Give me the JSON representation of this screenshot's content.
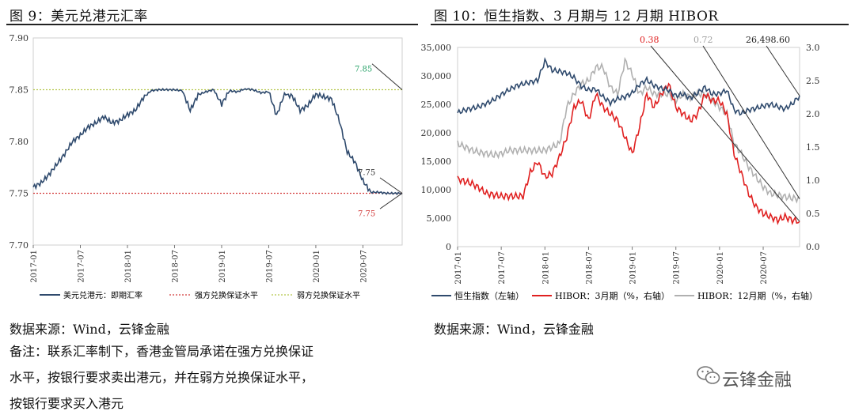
{
  "figures": {
    "left_title": "图 9：美元兑港元汇率",
    "right_title": "图 10：恒生指数、3 月期与 12 月期 HIBOR"
  },
  "source": {
    "left": "数据来源：Wind，云锋金融",
    "right": "数据来源：Wind，云锋金融"
  },
  "note": {
    "line1": "备注：联系汇率制下，香港金管局承诺在强方兑换保证",
    "line2": "水平，按银行要求卖出港元，并在弱方兑换保证水平，",
    "line3": "按银行要求买入港元"
  },
  "watermark": {
    "text": "云锋金融",
    "icon": "wechat-icon"
  },
  "chart_data": [
    {
      "type": "line",
      "x_ticks": [
        "2017-01",
        "2017-07",
        "2018-01",
        "2018-07",
        "2019-01",
        "2019-07",
        "2020-01",
        "2020-07"
      ],
      "y_ticks": [
        "7.70",
        "7.75",
        "7.80",
        "7.85",
        "7.90"
      ],
      "ylim": [
        7.7,
        7.9
      ],
      "xlim": [
        0,
        47
      ],
      "series": [
        {
          "name": "美元兑港元：即期汇率",
          "color": "#2f4a6d",
          "x": [
            0,
            1,
            2,
            3,
            4,
            5,
            6,
            7,
            8,
            9,
            10,
            11,
            12,
            13,
            14,
            15,
            16,
            17,
            18,
            19,
            20,
            21,
            22,
            23,
            24,
            25,
            26,
            27,
            28,
            29,
            30,
            31,
            32,
            33,
            34,
            35,
            36,
            37,
            38,
            39,
            40,
            41,
            42,
            43,
            44,
            45,
            46,
            47
          ],
          "values": [
            7.756,
            7.76,
            7.768,
            7.778,
            7.788,
            7.8,
            7.806,
            7.814,
            7.818,
            7.824,
            7.818,
            7.82,
            7.826,
            7.83,
            7.842,
            7.849,
            7.85,
            7.85,
            7.85,
            7.849,
            7.83,
            7.845,
            7.848,
            7.85,
            7.836,
            7.849,
            7.848,
            7.851,
            7.85,
            7.847,
            7.848,
            7.825,
            7.846,
            7.844,
            7.83,
            7.835,
            7.846,
            7.843,
            7.841,
            7.82,
            7.79,
            7.78,
            7.762,
            7.751,
            7.751,
            7.75,
            7.75,
            7.75
          ]
        },
        {
          "name": "强方兑换保证水平",
          "color": "#d23a3a",
          "values": [
            7.75
          ]
        },
        {
          "name": "弱方兑换保证水平",
          "color": "#b4c64a",
          "values": [
            7.85
          ]
        }
      ],
      "annotations": [
        "7.85",
        "7.75",
        "7.75"
      ],
      "annotation_colors": [
        "#2aa36a",
        "#333333",
        "#d23a3a"
      ]
    },
    {
      "type": "line",
      "x_ticks": [
        "2017-01",
        "2017-07",
        "2018-01",
        "2018-07",
        "2019-01",
        "2019-07",
        "2020-01",
        "2020-07"
      ],
      "y_left_ticks": [
        "0",
        "5,000",
        "10,000",
        "15,000",
        "20,000",
        "25,000",
        "30,000",
        "35,000"
      ],
      "y_right_ticks": [
        "0.0",
        "0.5",
        "1.0",
        "1.5",
        "2.0",
        "2.5",
        "3.0"
      ],
      "ylim_left": [
        0,
        35000
      ],
      "ylim_right": [
        0,
        3.0
      ],
      "xlim": [
        0,
        47
      ],
      "series": [
        {
          "name": "恒生指数（左轴）",
          "color": "#2f4a6d",
          "axis": "left",
          "x": [
            0,
            1,
            2,
            3,
            4,
            5,
            6,
            7,
            8,
            9,
            10,
            11,
            12,
            13,
            14,
            15,
            16,
            17,
            18,
            19,
            20,
            21,
            22,
            23,
            24,
            25,
            26,
            27,
            28,
            29,
            30,
            31,
            32,
            33,
            34,
            35,
            36,
            37,
            38,
            39,
            40,
            41,
            42,
            43,
            44,
            45,
            46,
            47
          ],
          "values": [
            23500,
            24000,
            24300,
            24600,
            25200,
            25800,
            26700,
            27500,
            28200,
            28600,
            28900,
            29200,
            32600,
            31000,
            30800,
            30500,
            29700,
            28200,
            27500,
            27700,
            26300,
            25300,
            26000,
            26300,
            27000,
            28500,
            29300,
            28300,
            27800,
            27500,
            26500,
            26800,
            26100,
            27000,
            28000,
            26800,
            26900,
            27500,
            24000,
            23400,
            24000,
            24300,
            24700,
            25000,
            24600,
            24200,
            25100,
            26498
          ]
        },
        {
          "name": "HIBOR：3月期（%，右轴）",
          "color": "#e02020",
          "axis": "right",
          "x": [
            0,
            1,
            2,
            3,
            4,
            5,
            6,
            7,
            8,
            9,
            10,
            11,
            12,
            13,
            14,
            15,
            16,
            17,
            18,
            19,
            20,
            21,
            22,
            23,
            24,
            25,
            26,
            27,
            28,
            29,
            30,
            31,
            32,
            33,
            34,
            35,
            36,
            37,
            38,
            39,
            40,
            41,
            42,
            43,
            44,
            45,
            46,
            47
          ],
          "values": [
            1.02,
            0.98,
            0.95,
            0.88,
            0.8,
            0.78,
            0.76,
            0.76,
            0.76,
            0.76,
            1.12,
            1.28,
            1.05,
            1.1,
            1.35,
            1.65,
            2.1,
            2.2,
            1.9,
            2.3,
            2.1,
            2.0,
            1.9,
            1.65,
            1.4,
            1.8,
            2.3,
            2.1,
            2.3,
            2.45,
            2.1,
            2.0,
            1.9,
            2.0,
            2.3,
            2.2,
            2.2,
            2.0,
            1.4,
            1.1,
            0.8,
            0.6,
            0.5,
            0.45,
            0.4,
            0.45,
            0.4,
            0.38
          ]
        },
        {
          "name": "HIBOR：12月期（%，右轴）",
          "color": "#b0b0b0",
          "axis": "right",
          "x": [
            0,
            1,
            2,
            3,
            4,
            5,
            6,
            7,
            8,
            9,
            10,
            11,
            12,
            13,
            14,
            15,
            16,
            17,
            18,
            19,
            20,
            21,
            22,
            23,
            24,
            25,
            26,
            27,
            28,
            29,
            30,
            31,
            32,
            33,
            34,
            35,
            36,
            37,
            38,
            39,
            40,
            41,
            42,
            43,
            44,
            45,
            46,
            47
          ],
          "values": [
            1.55,
            1.5,
            1.45,
            1.42,
            1.4,
            1.38,
            1.4,
            1.45,
            1.45,
            1.45,
            1.45,
            1.45,
            1.45,
            1.5,
            1.55,
            2.1,
            2.3,
            2.45,
            2.5,
            2.7,
            2.7,
            2.4,
            2.3,
            2.8,
            2.6,
            2.3,
            2.4,
            2.3,
            2.3,
            2.3,
            2.2,
            2.3,
            2.25,
            2.3,
            2.3,
            2.2,
            2.1,
            2.0,
            1.55,
            1.4,
            1.2,
            1.05,
            0.9,
            0.8,
            0.78,
            0.75,
            0.73,
            0.72
          ]
        }
      ],
      "annotations": [
        "0.38",
        "0.72",
        "26,498.60"
      ],
      "annotation_colors": [
        "#e02020",
        "#a0a0a0",
        "#222222"
      ]
    }
  ]
}
